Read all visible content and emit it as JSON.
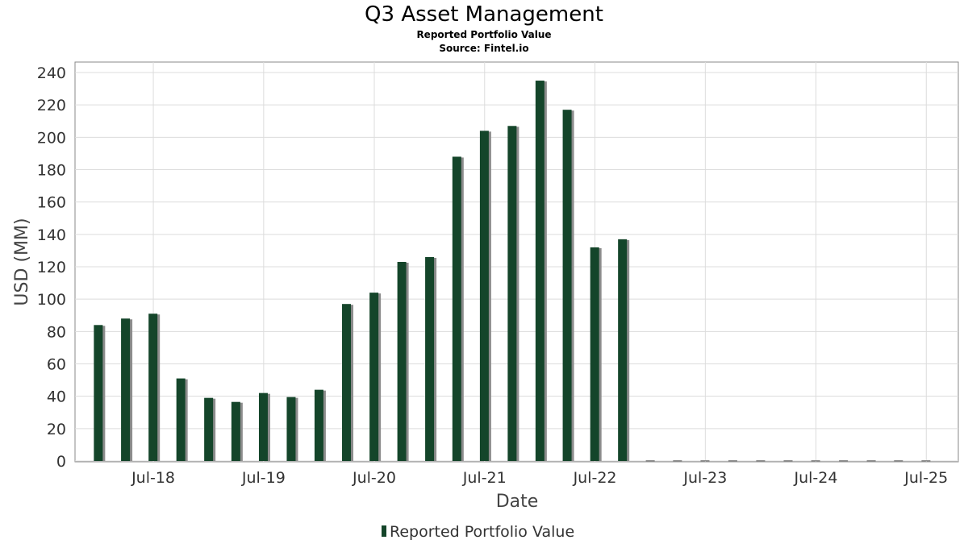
{
  "chart_data": {
    "type": "bar",
    "title": "Q3 Asset Management",
    "subtitle": "Reported Portfolio Value",
    "source": "Source: Fintel.io",
    "xlabel": "Date",
    "ylabel": "USD (MM)",
    "ylim": [
      0,
      240
    ],
    "yticks": [
      0,
      20,
      40,
      60,
      80,
      100,
      120,
      140,
      160,
      180,
      200,
      220,
      240
    ],
    "xticks": [
      {
        "label": "Jul-18",
        "date": "2018-07-01"
      },
      {
        "label": "Jul-19",
        "date": "2019-07-01"
      },
      {
        "label": "Jul-20",
        "date": "2020-07-01"
      },
      {
        "label": "Jul-21",
        "date": "2021-07-01"
      },
      {
        "label": "Jul-22",
        "date": "2022-07-01"
      },
      {
        "label": "Jul-23",
        "date": "2023-07-01"
      },
      {
        "label": "Jul-24",
        "date": "2024-07-01"
      },
      {
        "label": "Jul-25",
        "date": "2025-07-01"
      }
    ],
    "xlim": [
      "2017-10-15",
      "2025-10-15"
    ],
    "grid": true,
    "legend_position": "bottom-center",
    "colors": {
      "bar": "#14452a",
      "shadow": "#8c8c8c"
    },
    "series": [
      {
        "name": "Reported Portfolio Value",
        "x": [
          "2017-12-31",
          "2018-03-31",
          "2018-06-30",
          "2018-09-30",
          "2018-12-31",
          "2019-03-31",
          "2019-06-30",
          "2019-09-30",
          "2019-12-31",
          "2020-03-31",
          "2020-06-30",
          "2020-09-30",
          "2020-12-31",
          "2021-03-31",
          "2021-06-30",
          "2021-09-30",
          "2021-12-31",
          "2022-03-31",
          "2022-06-30",
          "2022-09-30",
          "2022-12-31",
          "2023-03-31",
          "2023-06-30",
          "2023-09-30",
          "2023-12-31",
          "2024-03-31",
          "2024-06-30",
          "2024-09-30",
          "2024-12-31",
          "2025-03-31",
          "2025-06-30"
        ],
        "values": [
          84,
          88,
          91,
          51,
          39,
          36.5,
          42,
          39.5,
          44,
          97,
          104,
          123,
          126,
          188,
          204,
          207,
          235,
          217,
          132,
          137,
          0,
          0,
          0,
          0,
          0,
          0,
          0,
          0,
          0,
          0,
          0
        ]
      }
    ]
  }
}
